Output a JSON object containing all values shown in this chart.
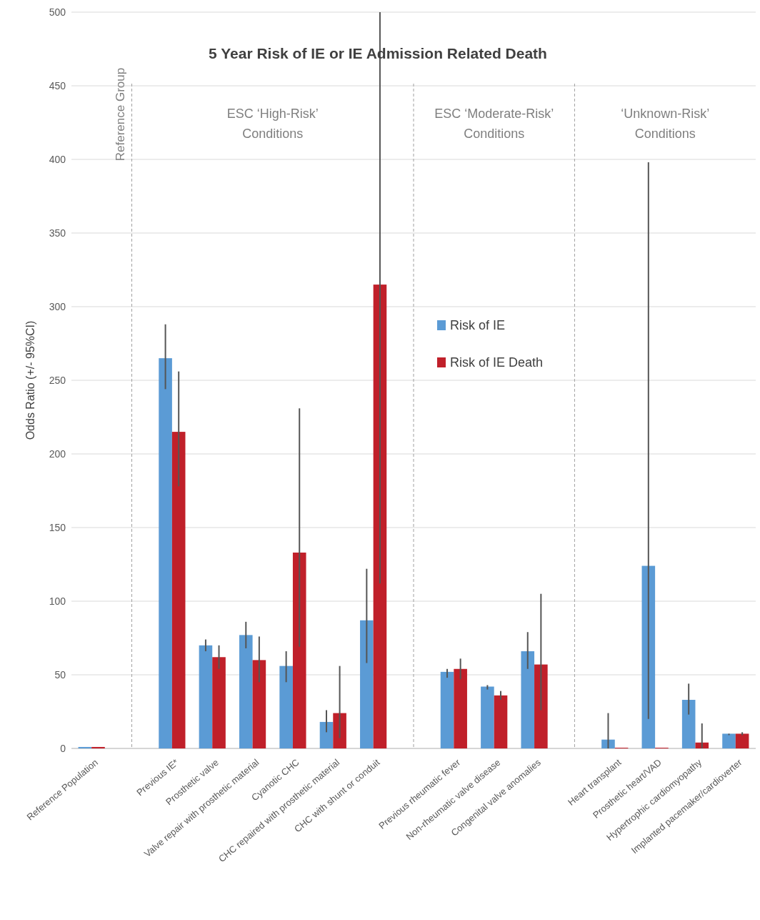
{
  "chart_data": {
    "type": "bar",
    "title": "5 Year Risk of IE or IE Admission Related Death",
    "ylabel": "Odds Ratio (+/- 95%CI)",
    "categories": [
      "Reference Population",
      null,
      "Previous IE*",
      "Prosthetic valve",
      "Valve repair with prosthetic material",
      "Cyanotic  CHC",
      "CHC repaired with prosthetic material",
      "CHC with shunt or conduit",
      null,
      "Previous rheumatic fever",
      "Non-rheumatic valve disease",
      "Congenital valve anomalies",
      null,
      "Heart transplant",
      "Prosthetic heart/VAD",
      "Hypertrophic cardiomyopathy",
      "Implanted pacemaker/cardioverter"
    ],
    "series": [
      {
        "name": "Risk of IE",
        "color": "#5b9bd5",
        "values": [
          1,
          null,
          265,
          70,
          77,
          56,
          18,
          87,
          null,
          52,
          42,
          66,
          null,
          6,
          124,
          33,
          10
        ],
        "errors": [
          null,
          null,
          [
            244,
            288
          ],
          [
            66,
            74
          ],
          [
            68,
            86
          ],
          [
            45,
            66
          ],
          [
            11,
            26
          ],
          [
            58,
            122
          ],
          null,
          [
            48,
            54
          ],
          [
            40,
            43
          ],
          [
            54,
            79
          ],
          null,
          [
            0,
            24
          ],
          [
            20,
            398
          ],
          [
            23,
            44
          ],
          [
            9,
            10
          ]
        ]
      },
      {
        "name": "Risk of IE Death",
        "color": "#c0202a",
        "values": [
          1,
          null,
          215,
          62,
          60,
          133,
          24,
          315,
          null,
          54,
          36,
          57,
          null,
          0.5,
          0.5,
          4,
          10
        ],
        "errors": [
          null,
          null,
          [
            178,
            256
          ],
          [
            54,
            70
          ],
          [
            45,
            76
          ],
          [
            69,
            231
          ],
          [
            7,
            56
          ],
          [
            112,
            500
          ],
          null,
          [
            47,
            61
          ],
          [
            33,
            39
          ],
          [
            26,
            105
          ],
          null,
          null,
          null,
          [
            0,
            17
          ],
          [
            9,
            11
          ]
        ]
      }
    ],
    "ylim": [
      0,
      500
    ],
    "yticks": [
      0,
      50,
      100,
      150,
      200,
      250,
      300,
      350,
      400,
      450,
      500
    ],
    "grid": "y",
    "legend": "top right",
    "annotations": [
      "Reference Group",
      "ESC ‘High-Risk’\nConditions",
      "ESC ‘Moderate-Risk’\nConditions",
      "‘Unknown-Risk’\nConditions"
    ]
  }
}
